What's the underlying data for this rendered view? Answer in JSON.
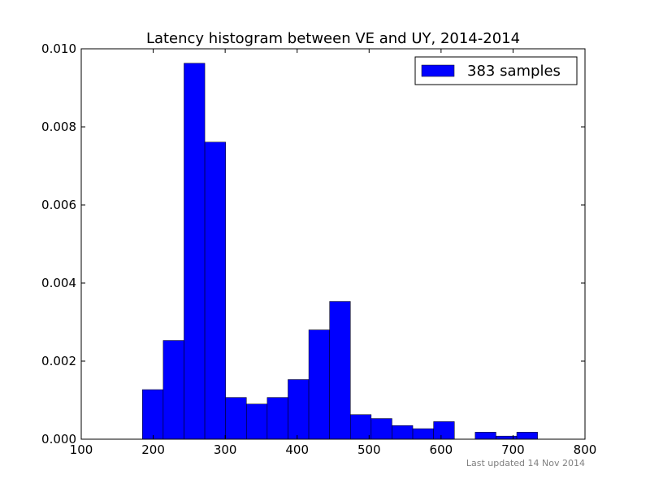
{
  "chart_data": {
    "type": "bar",
    "title": "Latency histogram between VE and UY, 2014-2014",
    "xlabel": "",
    "ylabel": "",
    "xlim": [
      100,
      800
    ],
    "ylim": [
      0,
      0.01
    ],
    "x_ticks": [
      "100",
      "200",
      "300",
      "400",
      "500",
      "600",
      "700",
      "800"
    ],
    "y_ticks": [
      "0.000",
      "0.002",
      "0.004",
      "0.006",
      "0.008",
      "0.010"
    ],
    "grid": false,
    "legend_position": "top-right",
    "bar_color": "#0000ff",
    "series": [
      {
        "name": "383 samples",
        "bins": [
          {
            "x0": 185.0,
            "x1": 213.9,
            "value": 0.00127
          },
          {
            "x0": 213.9,
            "x1": 242.8,
            "value": 0.00253
          },
          {
            "x0": 242.8,
            "x1": 271.7,
            "value": 0.00963
          },
          {
            "x0": 271.7,
            "x1": 300.6,
            "value": 0.00761
          },
          {
            "x0": 300.6,
            "x1": 329.5,
            "value": 0.00107
          },
          {
            "x0": 329.5,
            "x1": 358.4,
            "value": 0.0009
          },
          {
            "x0": 358.4,
            "x1": 387.3,
            "value": 0.00107
          },
          {
            "x0": 387.3,
            "x1": 416.2,
            "value": 0.00153
          },
          {
            "x0": 416.2,
            "x1": 445.1,
            "value": 0.0028
          },
          {
            "x0": 445.1,
            "x1": 474.0,
            "value": 0.00353
          },
          {
            "x0": 474.0,
            "x1": 502.9,
            "value": 0.00063
          },
          {
            "x0": 502.9,
            "x1": 531.8,
            "value": 0.00053
          },
          {
            "x0": 531.8,
            "x1": 560.7,
            "value": 0.00035
          },
          {
            "x0": 560.7,
            "x1": 589.6,
            "value": 0.00027
          },
          {
            "x0": 589.6,
            "x1": 618.5,
            "value": 0.00045
          },
          {
            "x0": 647.4,
            "x1": 676.3,
            "value": 0.00018
          },
          {
            "x0": 676.3,
            "x1": 705.2,
            "value": 8e-05
          },
          {
            "x0": 705.2,
            "x1": 734.1,
            "value": 0.00018
          }
        ]
      }
    ]
  },
  "footer": {
    "updated_text": "Last updated 14 Nov 2014"
  }
}
